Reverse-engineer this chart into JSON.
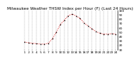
{
  "title": "Milwaukee Weather THSW Index per Hour (F) (Last 24 Hours)",
  "hours": [
    0,
    1,
    2,
    3,
    4,
    5,
    6,
    7,
    8,
    9,
    10,
    11,
    12,
    13,
    14,
    15,
    16,
    17,
    18,
    19,
    20,
    21,
    22,
    23
  ],
  "values": [
    28,
    26,
    25,
    24,
    23,
    23,
    25,
    35,
    50,
    68,
    78,
    88,
    92,
    88,
    82,
    72,
    65,
    58,
    52,
    48,
    46,
    46,
    47,
    46
  ],
  "ylim": [
    10,
    100
  ],
  "yticks": [
    10,
    20,
    30,
    40,
    50,
    60,
    70,
    80,
    90,
    100
  ],
  "line_color": "#cc0000",
  "marker_color": "#000000",
  "bg_color": "#ffffff",
  "grid_color": "#999999",
  "title_color": "#000000",
  "title_fontsize": 4.2,
  "tick_fontsize": 3.2,
  "x_tick_labels": [
    "1",
    "2",
    "3",
    "4",
    "5",
    "6",
    "7",
    "8",
    "9",
    "10",
    "11",
    "12",
    "13",
    "14",
    "15",
    "16",
    "17",
    "18",
    "19",
    "20",
    "21",
    "22",
    "23",
    "24"
  ]
}
